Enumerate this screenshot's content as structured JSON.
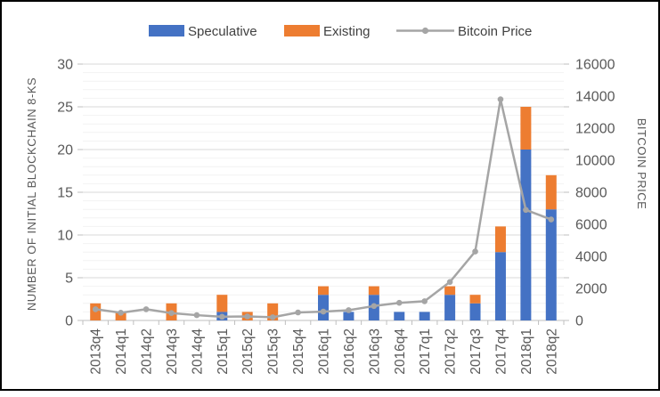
{
  "frame": {
    "background": "#FFFFFF",
    "border_color": "#000000"
  },
  "legend": {
    "items": [
      {
        "label": "Speculative",
        "swatch": "bar",
        "color": "#4472C4"
      },
      {
        "label": "Existing",
        "swatch": "bar",
        "color": "#ED7D31"
      },
      {
        "label": "Bitcoin Price",
        "swatch": "line-marker",
        "color": "#A5A5A5"
      }
    ]
  },
  "chart_data": {
    "type": "combo-stacked-bar-line",
    "categories": [
      "2013q4",
      "2014q1",
      "2014q2",
      "2014q3",
      "2014q4",
      "2015q1",
      "2015q2",
      "2015q3",
      "2015q4",
      "2016q1",
      "2016q2",
      "2016q3",
      "2016q4",
      "2017q1",
      "2017q2",
      "2017q3",
      "2017q4",
      "2018q1",
      "2018q2"
    ],
    "series": [
      {
        "name": "Speculative",
        "type": "bar",
        "stacked": true,
        "axis": "left",
        "color": "#4472C4",
        "values": [
          0,
          0,
          0,
          0,
          0,
          1,
          0,
          0,
          0,
          3,
          1,
          3,
          1,
          1,
          3,
          2,
          8,
          20,
          13
        ]
      },
      {
        "name": "Existing",
        "type": "bar",
        "stacked": true,
        "axis": "left",
        "color": "#ED7D31",
        "values": [
          2,
          1,
          0,
          2,
          0,
          2,
          1,
          2,
          0,
          1,
          0,
          1,
          0,
          0,
          1,
          1,
          3,
          5,
          4
        ]
      },
      {
        "name": "Bitcoin Price",
        "type": "line",
        "axis": "right",
        "color": "#A5A5A5",
        "values": [
          700,
          480,
          700,
          460,
          330,
          230,
          250,
          200,
          500,
          550,
          640,
          900,
          1100,
          1200,
          2400,
          4300,
          13800,
          6900,
          6300
        ]
      }
    ],
    "stacked_totals": [
      2,
      1,
      0,
      2,
      0,
      3,
      1,
      2,
      0,
      4,
      1,
      4,
      1,
      1,
      4,
      3,
      11,
      25,
      17
    ],
    "left_axis": {
      "title": "NUMBER OF  INITIAL BLOCKCHAIN 8-KS",
      "min": 0,
      "max": 30,
      "major_step": 5,
      "minor_step": 1,
      "tick_labels": [
        "0",
        "5",
        "10",
        "15",
        "20",
        "25",
        "30"
      ]
    },
    "right_axis": {
      "title": "BITCOIN PRICE",
      "min": 0,
      "max": 16000,
      "major_step": 2000,
      "tick_labels": [
        "0",
        "2000",
        "4000",
        "6000",
        "8000",
        "10000",
        "12000",
        "14000",
        "16000"
      ]
    },
    "grid": {
      "minor": "on",
      "major": "on",
      "legend_position": "top"
    },
    "styles": {
      "minor_grid": "#F2F2F2",
      "major_grid": "#D9D9D9",
      "axis_line": "#BFBFBF",
      "tick_color": "#BFBFBF",
      "label_color": "#595959",
      "legend_text_color": "#404040"
    }
  }
}
